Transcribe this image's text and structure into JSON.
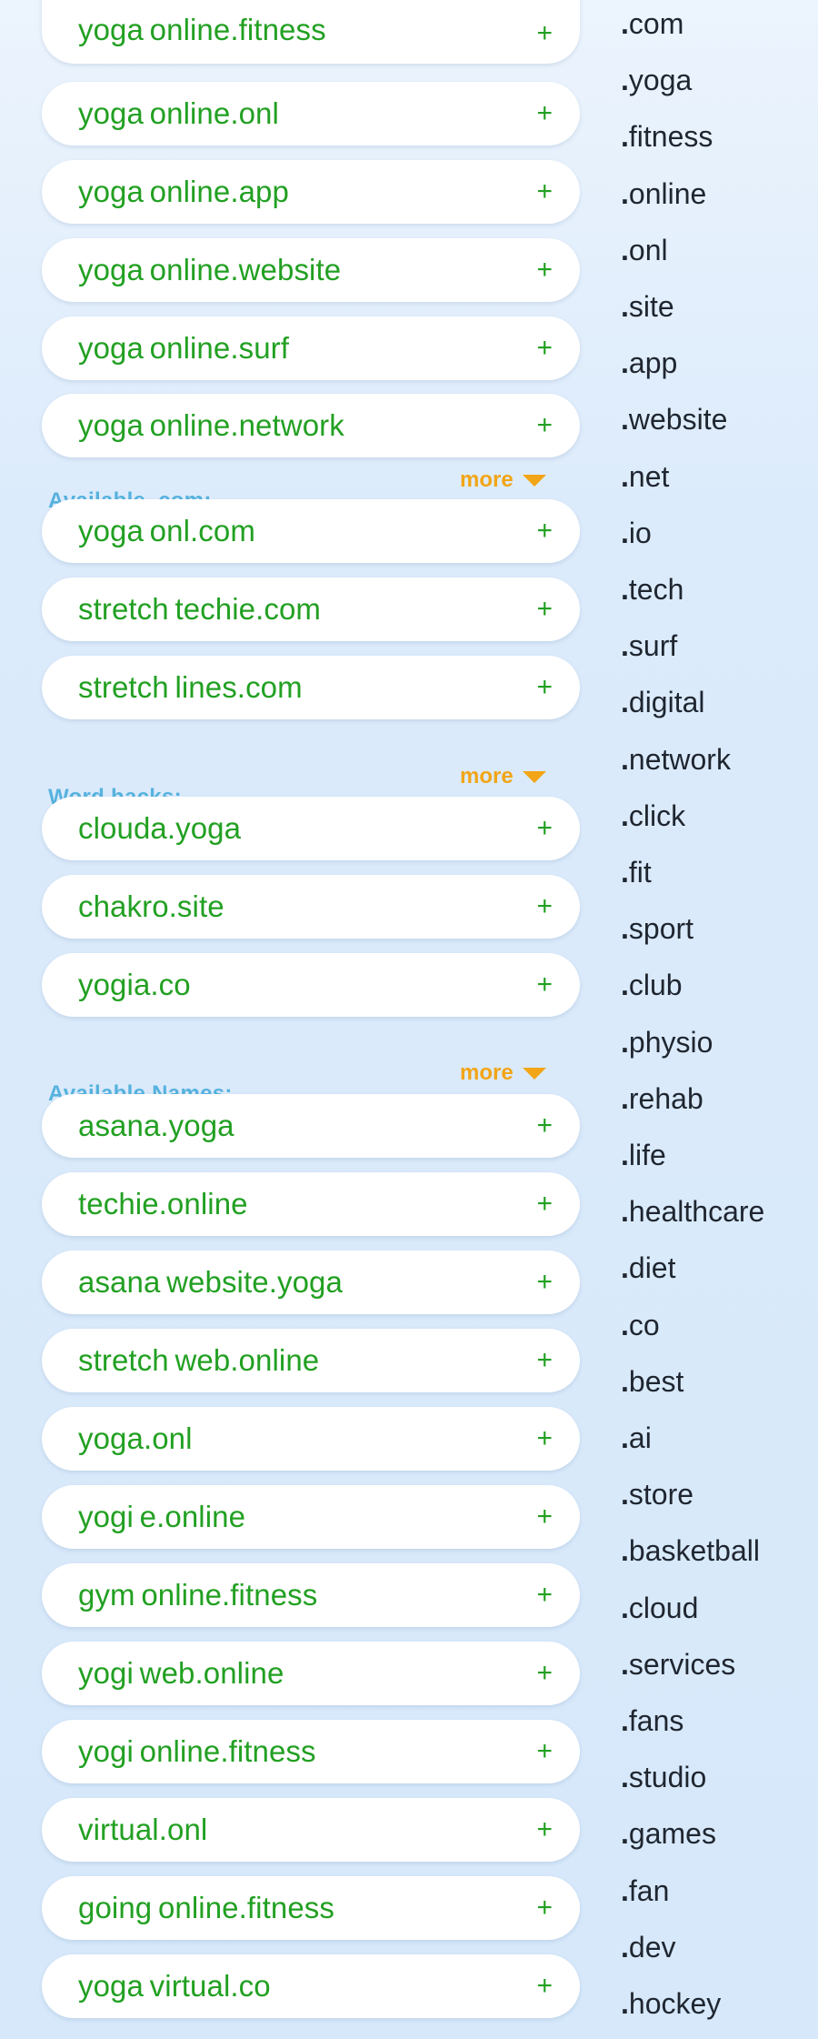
{
  "groups": [
    {
      "label": "",
      "items": [
        {
          "name": "yoga online.fitness"
        },
        {
          "name": "yoga online.onl"
        },
        {
          "name": "yoga online.app"
        },
        {
          "name": "yoga online.website"
        },
        {
          "name": "yoga online.surf"
        },
        {
          "name": "yoga online.network"
        }
      ],
      "more_label": "more"
    },
    {
      "label": "Available .com:",
      "items": [
        {
          "name": "yoga onl.com"
        },
        {
          "name": "stretch techie.com"
        },
        {
          "name": "stretch lines.com"
        }
      ],
      "more_label": "more"
    },
    {
      "label": "Word hacks:",
      "items": [
        {
          "name": "clouda.yoga"
        },
        {
          "name": "chakro.site"
        },
        {
          "name": "yogia.co"
        }
      ],
      "more_label": "more"
    },
    {
      "label": "Available Names:",
      "items": [
        {
          "name": "asana.yoga"
        },
        {
          "name": "techie.online"
        },
        {
          "name": "asana website.yoga"
        },
        {
          "name": "stretch web.online"
        },
        {
          "name": "yoga.onl"
        },
        {
          "name": "yogi e.online"
        },
        {
          "name": "gym online.fitness"
        },
        {
          "name": "yogi web.online"
        },
        {
          "name": "yogi online.fitness"
        },
        {
          "name": "virtual.onl"
        },
        {
          "name": "going online.fitness"
        },
        {
          "name": "yoga virtual.co"
        }
      ]
    }
  ],
  "add_symbol": "+",
  "tlds": [
    "com",
    "yoga",
    "fitness",
    "online",
    "onl",
    "site",
    "app",
    "website",
    "net",
    "io",
    "tech",
    "surf",
    "digital",
    "network",
    "click",
    "fit",
    "sport",
    "club",
    "physio",
    "rehab",
    "life",
    "healthcare",
    "diet",
    "co",
    "best",
    "ai",
    "store",
    "basketball",
    "cloud",
    "services",
    "fans",
    "studio",
    "games",
    "fan",
    "dev",
    "hockey"
  ],
  "colors": {
    "domain_green": "#22a022",
    "more_orange": "#f2a516",
    "label_blue": "#56b2de",
    "tld_text": "#1f2630"
  }
}
